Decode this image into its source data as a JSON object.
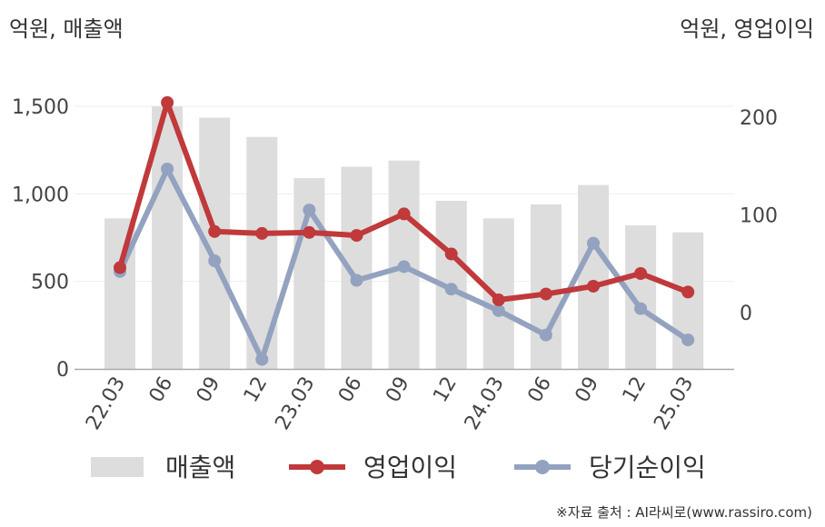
{
  "units": {
    "left": "억원, 매출액",
    "right": "억원, 영업이익"
  },
  "source": "※자료 출처 : AI라씨로(www.rassiro.com)",
  "chart_data": {
    "type": "bar+line",
    "categories": [
      "22.03",
      "06",
      "09",
      "12",
      "23.03",
      "06",
      "09",
      "12",
      "24.03",
      "06",
      "09",
      "12",
      "25.03"
    ],
    "y_left": {
      "ticks": [
        "0",
        "500",
        "1,000",
        "1,500"
      ],
      "range": [
        0,
        1500
      ]
    },
    "y_right": {
      "ticks": [
        "0",
        "100",
        "200"
      ]
    },
    "series": [
      {
        "name": "매출액",
        "kind": "bar",
        "axis": "left",
        "color": "#dddddd",
        "values": [
          860,
          1500,
          1435,
          1325,
          1090,
          1155,
          1190,
          960,
          860,
          940,
          1050,
          820,
          780
        ]
      },
      {
        "name": "영업이익",
        "kind": "line",
        "axis": "right",
        "color": "#c0393b",
        "values": [
          46,
          215,
          83,
          81,
          82,
          79,
          101,
          60,
          13,
          19,
          27,
          40,
          21
        ]
      },
      {
        "name": "당기순이익",
        "kind": "line",
        "axis": "right",
        "color": "#93a2bf",
        "values": [
          42,
          147,
          53,
          -48,
          105,
          33,
          47,
          24,
          2,
          -23,
          71,
          4,
          -28
        ]
      }
    ]
  }
}
